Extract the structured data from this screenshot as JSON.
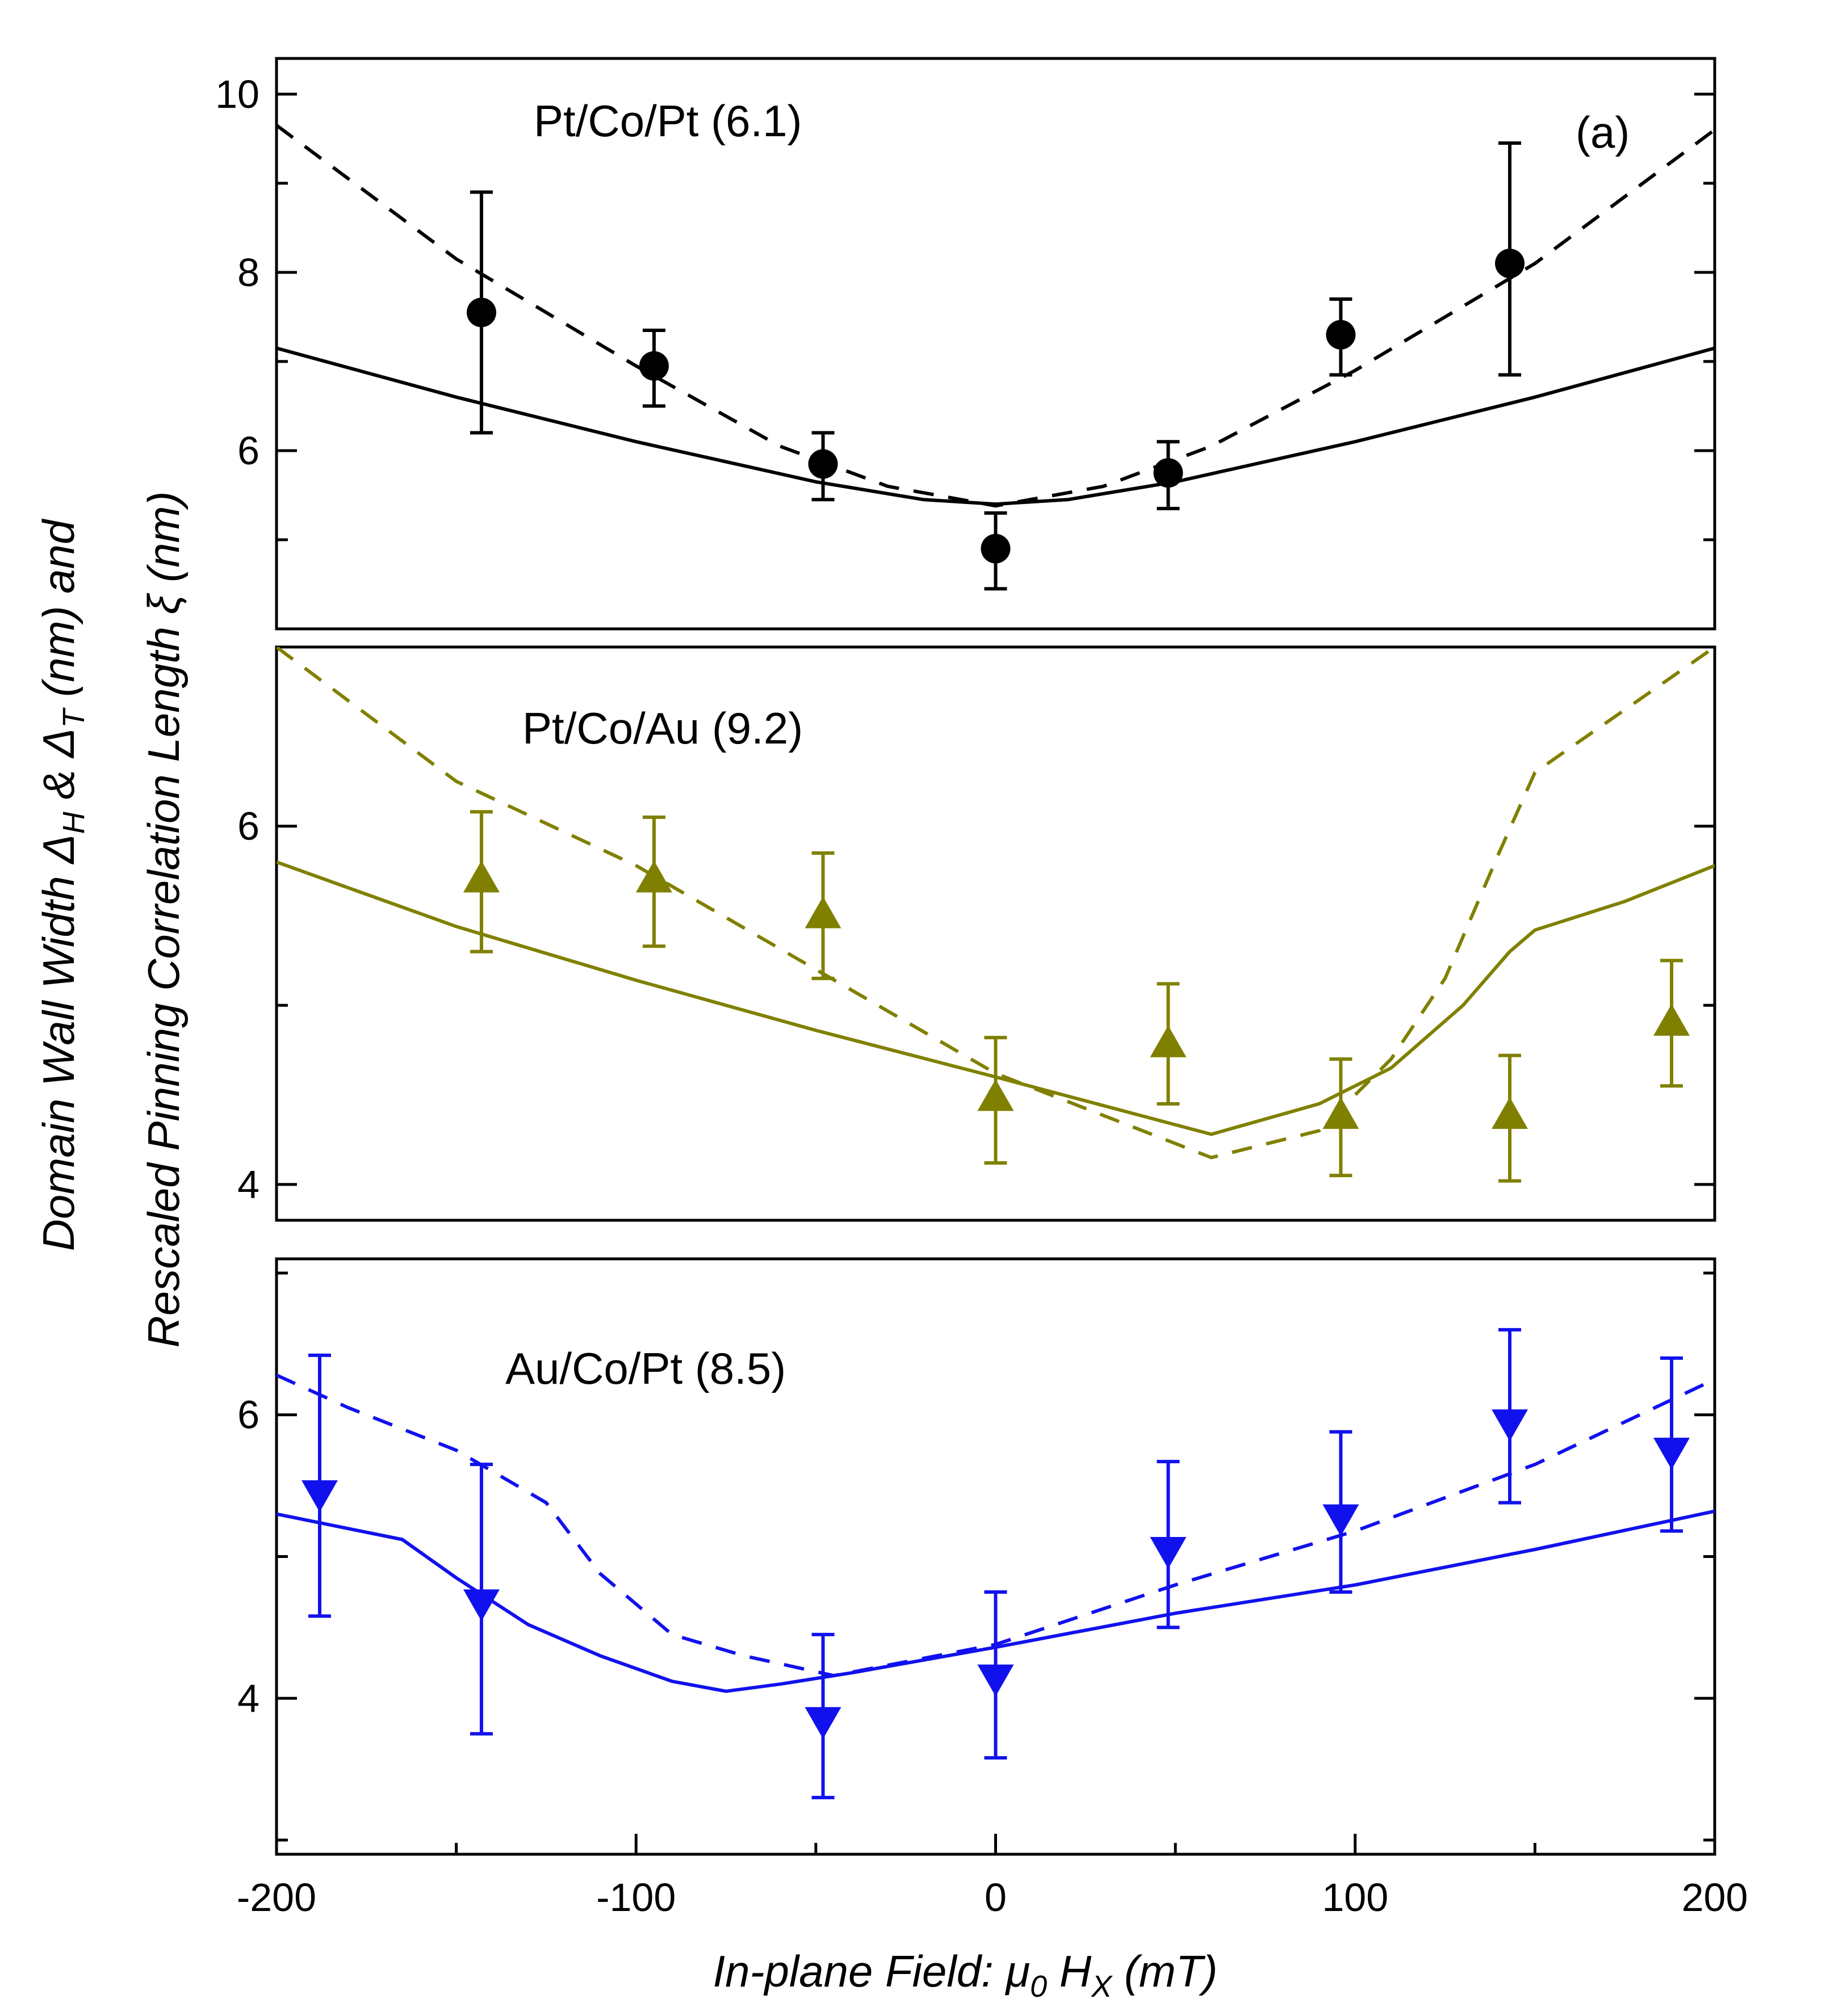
{
  "chart_data": {
    "type": "scatter",
    "title": "",
    "panel_letter": "(a)",
    "xlabel": {
      "prefix": "In-plane Field: ",
      "mu": "μ",
      "mu_sub": "0",
      "h": " H",
      "h_sub": "X",
      "unit": " (mT)"
    },
    "ylabel": {
      "line1_prefix": "Domain Wall Width ",
      "delta": "Δ",
      "sub_h": "H",
      "amp": " & ",
      "sub_t": "T",
      "line1_suffix": " (nm) and",
      "line2_prefix": "Rescaled Pinning Correlation Length ",
      "xi": "ξ",
      "line2_suffix": " (nm)"
    },
    "xlim": [
      -200,
      200
    ],
    "xticks": [
      -200,
      -100,
      0,
      100,
      200
    ],
    "xtick_labels": [
      "-200",
      "-100",
      "0",
      "100",
      "200"
    ],
    "panels": [
      {
        "name": "Pt/Co/Pt (6.1)",
        "color": "#000000",
        "marker": "circle",
        "ylim": [
          4.0,
          10.4
        ],
        "yticks": [
          6,
          8,
          10
        ],
        "ytick_labels": [
          "6",
          "8",
          "10"
        ],
        "points": [
          {
            "x": -143,
            "y": 7.55,
            "lo": 6.2,
            "hi": 8.9
          },
          {
            "x": -95,
            "y": 6.95,
            "lo": 6.5,
            "hi": 7.35
          },
          {
            "x": -48,
            "y": 5.85,
            "lo": 5.45,
            "hi": 6.2
          },
          {
            "x": 0,
            "y": 4.9,
            "lo": 4.45,
            "hi": 5.3
          },
          {
            "x": 48,
            "y": 5.75,
            "lo": 5.35,
            "hi": 6.1
          },
          {
            "x": 96,
            "y": 7.3,
            "lo": 6.85,
            "hi": 7.7
          },
          {
            "x": 143,
            "y": 8.1,
            "lo": 6.85,
            "hi": 9.45
          }
        ],
        "solid": [
          [
            -200,
            7.15
          ],
          [
            -150,
            6.6
          ],
          [
            -100,
            6.1
          ],
          [
            -50,
            5.65
          ],
          [
            -20,
            5.45
          ],
          [
            0,
            5.4
          ],
          [
            20,
            5.45
          ],
          [
            50,
            5.65
          ],
          [
            100,
            6.1
          ],
          [
            150,
            6.6
          ],
          [
            200,
            7.15
          ]
        ],
        "dashed": [
          [
            -200,
            9.65
          ],
          [
            -150,
            8.15
          ],
          [
            -100,
            6.95
          ],
          [
            -60,
            6.05
          ],
          [
            -30,
            5.6
          ],
          [
            0,
            5.38
          ],
          [
            30,
            5.6
          ],
          [
            60,
            6.05
          ],
          [
            100,
            6.9
          ],
          [
            150,
            8.1
          ],
          [
            200,
            9.6
          ]
        ]
      },
      {
        "name": "Pt/Co/Au (9.2)",
        "color": "#808000",
        "marker": "triangle-up",
        "ylim": [
          3.8,
          7.0
        ],
        "yticks": [
          4,
          6
        ],
        "ytick_labels": [
          "4",
          "6"
        ],
        "points": [
          {
            "x": -143,
            "y": 5.7,
            "lo": 5.3,
            "hi": 6.08
          },
          {
            "x": -95,
            "y": 5.7,
            "lo": 5.33,
            "hi": 6.05
          },
          {
            "x": -48,
            "y": 5.5,
            "lo": 5.15,
            "hi": 5.85
          },
          {
            "x": 0,
            "y": 4.48,
            "lo": 4.12,
            "hi": 4.82
          },
          {
            "x": 48,
            "y": 4.78,
            "lo": 4.45,
            "hi": 5.12
          },
          {
            "x": 96,
            "y": 4.38,
            "lo": 4.05,
            "hi": 4.7
          },
          {
            "x": 143,
            "y": 4.38,
            "lo": 4.02,
            "hi": 4.72
          },
          {
            "x": 188,
            "y": 4.9,
            "lo": 4.55,
            "hi": 5.25
          }
        ],
        "solid": [
          [
            -200,
            5.8
          ],
          [
            -150,
            5.44
          ],
          [
            -100,
            5.14
          ],
          [
            -50,
            4.86
          ],
          [
            0,
            4.6
          ],
          [
            60,
            4.28
          ],
          [
            90,
            4.45
          ],
          [
            110,
            4.65
          ],
          [
            130,
            5.0
          ],
          [
            143,
            5.3
          ],
          [
            150,
            5.42
          ],
          [
            175,
            5.58
          ],
          [
            200,
            5.78
          ]
        ],
        "dashed": [
          [
            -200,
            7.0
          ],
          [
            -150,
            6.25
          ],
          [
            -100,
            5.78
          ],
          [
            -50,
            5.2
          ],
          [
            0,
            4.62
          ],
          [
            60,
            4.15
          ],
          [
            90,
            4.3
          ],
          [
            110,
            4.7
          ],
          [
            125,
            5.15
          ],
          [
            140,
            5.85
          ],
          [
            150,
            6.3
          ],
          [
            175,
            6.65
          ],
          [
            200,
            7.0
          ]
        ]
      },
      {
        "name": "Au/Co/Pt (8.5)",
        "color": "#1111ee",
        "marker": "triangle-down",
        "ylim": [
          2.9,
          7.1
        ],
        "yticks": [
          4,
          6
        ],
        "ytick_labels": [
          "4",
          "6"
        ],
        "points": [
          {
            "x": -188,
            "y": 5.45,
            "lo": 4.58,
            "hi": 6.42
          },
          {
            "x": -143,
            "y": 4.68,
            "lo": 3.75,
            "hi": 5.65
          },
          {
            "x": -48,
            "y": 3.85,
            "lo": 3.3,
            "hi": 4.45
          },
          {
            "x": 0,
            "y": 4.15,
            "lo": 3.58,
            "hi": 4.75
          },
          {
            "x": 48,
            "y": 5.05,
            "lo": 4.5,
            "hi": 5.67
          },
          {
            "x": 96,
            "y": 5.28,
            "lo": 4.75,
            "hi": 5.88
          },
          {
            "x": 143,
            "y": 5.95,
            "lo": 5.38,
            "hi": 6.6
          },
          {
            "x": 188,
            "y": 5.75,
            "lo": 5.18,
            "hi": 6.4
          }
        ],
        "solid": [
          [
            -200,
            5.3
          ],
          [
            -165,
            5.12
          ],
          [
            -150,
            4.85
          ],
          [
            -130,
            4.52
          ],
          [
            -110,
            4.3
          ],
          [
            -90,
            4.12
          ],
          [
            -75,
            4.05
          ],
          [
            -60,
            4.1
          ],
          [
            -40,
            4.18
          ],
          [
            0,
            4.36
          ],
          [
            50,
            4.6
          ],
          [
            100,
            4.8
          ],
          [
            150,
            5.05
          ],
          [
            200,
            5.32
          ]
        ],
        "dashed": [
          [
            -200,
            6.28
          ],
          [
            -180,
            6.05
          ],
          [
            -150,
            5.75
          ],
          [
            -125,
            5.38
          ],
          [
            -110,
            4.88
          ],
          [
            -90,
            4.45
          ],
          [
            -70,
            4.3
          ],
          [
            -45,
            4.16
          ],
          [
            0,
            4.38
          ],
          [
            50,
            4.8
          ],
          [
            100,
            5.18
          ],
          [
            150,
            5.65
          ],
          [
            200,
            6.25
          ]
        ]
      }
    ]
  }
}
